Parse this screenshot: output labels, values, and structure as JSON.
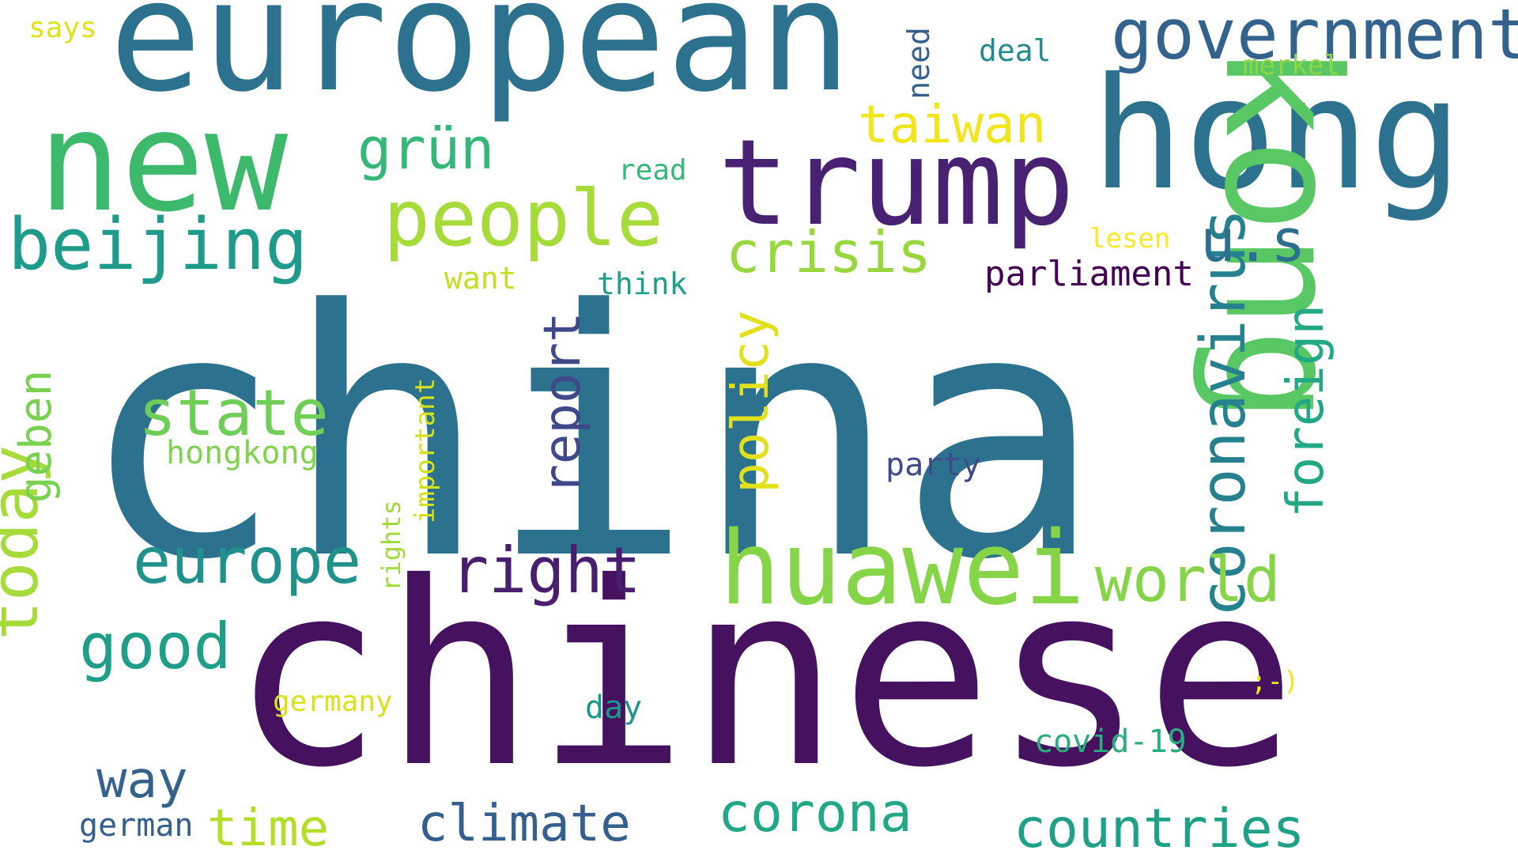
{
  "words": [
    {
      "text": "china",
      "color": "#2c728e"
    },
    {
      "text": "chinese",
      "color": "#46125f"
    },
    {
      "text": "european",
      "color": "#2c728e"
    },
    {
      "text": "hong",
      "color": "#2c728e"
    },
    {
      "text": "kong",
      "color": "#59c864"
    },
    {
      "text": "new",
      "color": "#3cb96b"
    },
    {
      "text": "trump",
      "color": "#482173"
    },
    {
      "text": "huawei",
      "color": "#86d549"
    },
    {
      "text": "government",
      "color": "#33638d"
    },
    {
      "text": "beijing",
      "color": "#1e9b8a"
    },
    {
      "text": "people",
      "color": "#a6db3a"
    },
    {
      "text": "coronavirus",
      "color": "#26818e"
    },
    {
      "text": "today",
      "color": "#a6db3a"
    },
    {
      "text": "europe",
      "color": "#21918c"
    },
    {
      "text": "right",
      "color": "#481e6f"
    },
    {
      "text": "world",
      "color": "#86d549"
    },
    {
      "text": "state",
      "color": "#6ece58"
    },
    {
      "text": "crisis",
      "color": "#98d83e"
    },
    {
      "text": "foreign",
      "color": "#22a884"
    },
    {
      "text": "report",
      "color": "#3f4889"
    },
    {
      "text": "policy",
      "color": "#e1e01b"
    },
    {
      "text": "grün",
      "color": "#35b779"
    },
    {
      "text": "taiwan",
      "color": "#f1e51d"
    },
    {
      "text": "u.s",
      "color": "#2d708e"
    },
    {
      "text": "good",
      "color": "#1f9e89"
    },
    {
      "text": "corona",
      "color": "#22a884"
    },
    {
      "text": "countries",
      "color": "#1fa187"
    },
    {
      "text": "climate",
      "color": "#355f8d"
    },
    {
      "text": "time",
      "color": "#b5de2b"
    },
    {
      "text": "way",
      "color": "#33638d"
    },
    {
      "text": "geben",
      "color": "#7ad151"
    },
    {
      "text": "parliament",
      "color": "#440154"
    },
    {
      "text": "hongkong",
      "color": "#7fd34e"
    },
    {
      "text": "party",
      "color": "#3e4a89"
    },
    {
      "text": "important",
      "color": "#d2e21b"
    },
    {
      "text": "rights",
      "color": "#9fda3a"
    },
    {
      "text": "germany",
      "color": "#d8e219"
    },
    {
      "text": "german",
      "color": "#355f8d"
    },
    {
      "text": "covid-19",
      "color": "#29af7f"
    },
    {
      "text": "day",
      "color": "#1f968b"
    },
    {
      "text": ";-)",
      "color": "#f1e51d"
    },
    {
      "text": "says",
      "color": "#dde318"
    },
    {
      "text": "deal",
      "color": "#238a8d"
    },
    {
      "text": "need",
      "color": "#355f8d"
    },
    {
      "text": "merkel",
      "color": "#8ed645"
    },
    {
      "text": "read",
      "color": "#35b779"
    },
    {
      "text": "lesen",
      "color": "#fde725"
    },
    {
      "text": "want",
      "color": "#c2df23"
    },
    {
      "text": "think",
      "color": "#1f9e89"
    }
  ]
}
